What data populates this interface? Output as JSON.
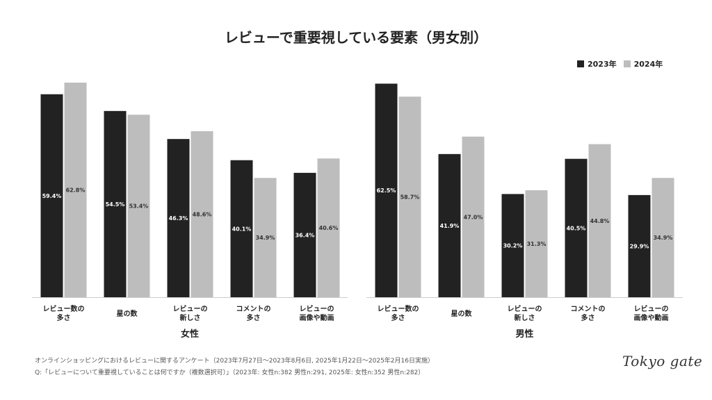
{
  "title": "レビューで重要視している要素（男女別）",
  "legend": [
    {
      "label": "2023年",
      "color": "#222222"
    },
    {
      "label": "2024年",
      "color": "#bdbdbd"
    }
  ],
  "colors": {
    "series_2023": "#222222",
    "series_2024": "#bdbdbd",
    "axis": "#cccccc"
  },
  "chart_data": [
    {
      "type": "bar",
      "title": "女性",
      "categories": [
        [
          "レビュー数の",
          "多さ"
        ],
        [
          "星の数"
        ],
        [
          "レビューの",
          "新しさ"
        ],
        [
          "コメントの",
          "多さ"
        ],
        [
          "レビューの",
          "画像や動画"
        ]
      ],
      "series": [
        {
          "name": "2023年",
          "values": [
            59.4,
            54.5,
            46.3,
            40.1,
            36.4
          ]
        },
        {
          "name": "2024年",
          "values": [
            62.8,
            53.4,
            48.6,
            34.9,
            40.6
          ]
        }
      ],
      "value_suffix": "%",
      "ylim": [
        0,
        63
      ]
    },
    {
      "type": "bar",
      "title": "男性",
      "categories": [
        [
          "レビュー数の",
          "多さ"
        ],
        [
          "星の数"
        ],
        [
          "レビューの",
          "新しさ"
        ],
        [
          "コメントの",
          "多さ"
        ],
        [
          "レビューの",
          "画像や動画"
        ]
      ],
      "series": [
        {
          "name": "2023年",
          "values": [
            62.5,
            41.9,
            30.2,
            40.5,
            29.9
          ]
        },
        {
          "name": "2024年",
          "values": [
            58.7,
            47.0,
            31.3,
            44.8,
            34.9
          ]
        }
      ],
      "value_suffix": "%",
      "ylim": [
        0,
        63
      ]
    }
  ],
  "notes": [
    "オンラインショッピングにおけるレビューに関するアンケート（2023年7月27日〜2023年8月6日, 2025年1月22日〜2025年2月16日実施）",
    "Q:「レビューについて重要視していることは何ですか（複数選択可）」（2023年: 女性n:382 男性n:291, 2025年: 女性n:352 男性n:282）"
  ],
  "logo": "Tokyo gate"
}
